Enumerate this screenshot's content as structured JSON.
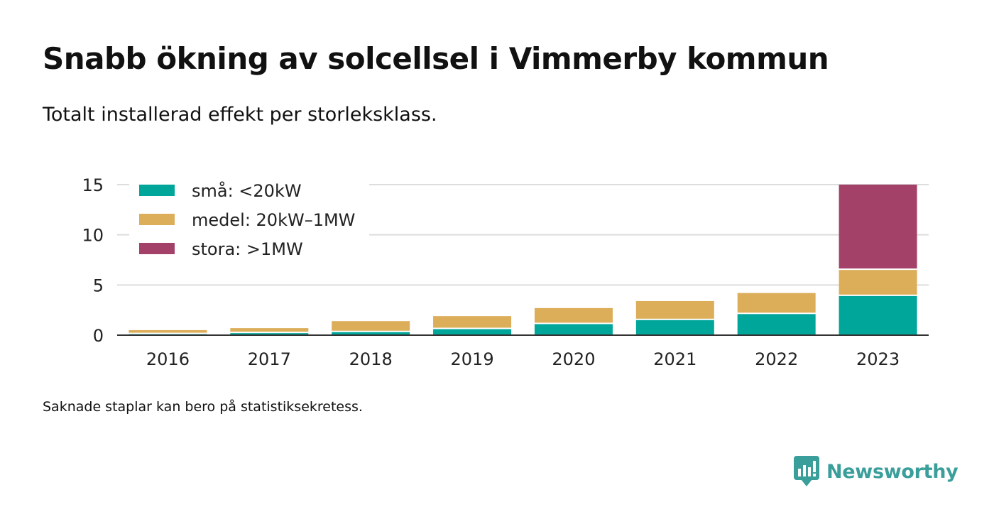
{
  "title": "Snabb ökning av solcellsel i Vimmerby kommun",
  "subtitle": "Totalt installerad effekt per storleksklass.",
  "footnote": "Saknade staplar kan bero på statistiksekretess.",
  "brand": {
    "name": "Newsworthy",
    "icon": "newsworthy-logo-icon",
    "color": "#3a9e9a"
  },
  "chart_data": {
    "type": "bar",
    "stacked": true,
    "categories": [
      "2016",
      "2017",
      "2018",
      "2019",
      "2020",
      "2021",
      "2022",
      "2023"
    ],
    "series": [
      {
        "name": "små: <20kW",
        "color": "#00a69a",
        "values": [
          0.1,
          0.2,
          0.3,
          0.6,
          1.1,
          1.5,
          2.1,
          3.9
        ]
      },
      {
        "name": "medel: 20kW–1MW",
        "color": "#dcae5a",
        "values": [
          0.4,
          0.5,
          1.1,
          1.3,
          1.6,
          1.9,
          2.1,
          2.6
        ]
      },
      {
        "name": "stora: >1MW",
        "color": "#a34169",
        "values": [
          0,
          0,
          0,
          0,
          0,
          0,
          0,
          8.5
        ]
      }
    ],
    "ylim": [
      0,
      15
    ],
    "yticks": [
      0,
      5,
      10,
      15
    ],
    "xlabel": "",
    "ylabel": "",
    "grid": true,
    "legend": "top-left"
  }
}
